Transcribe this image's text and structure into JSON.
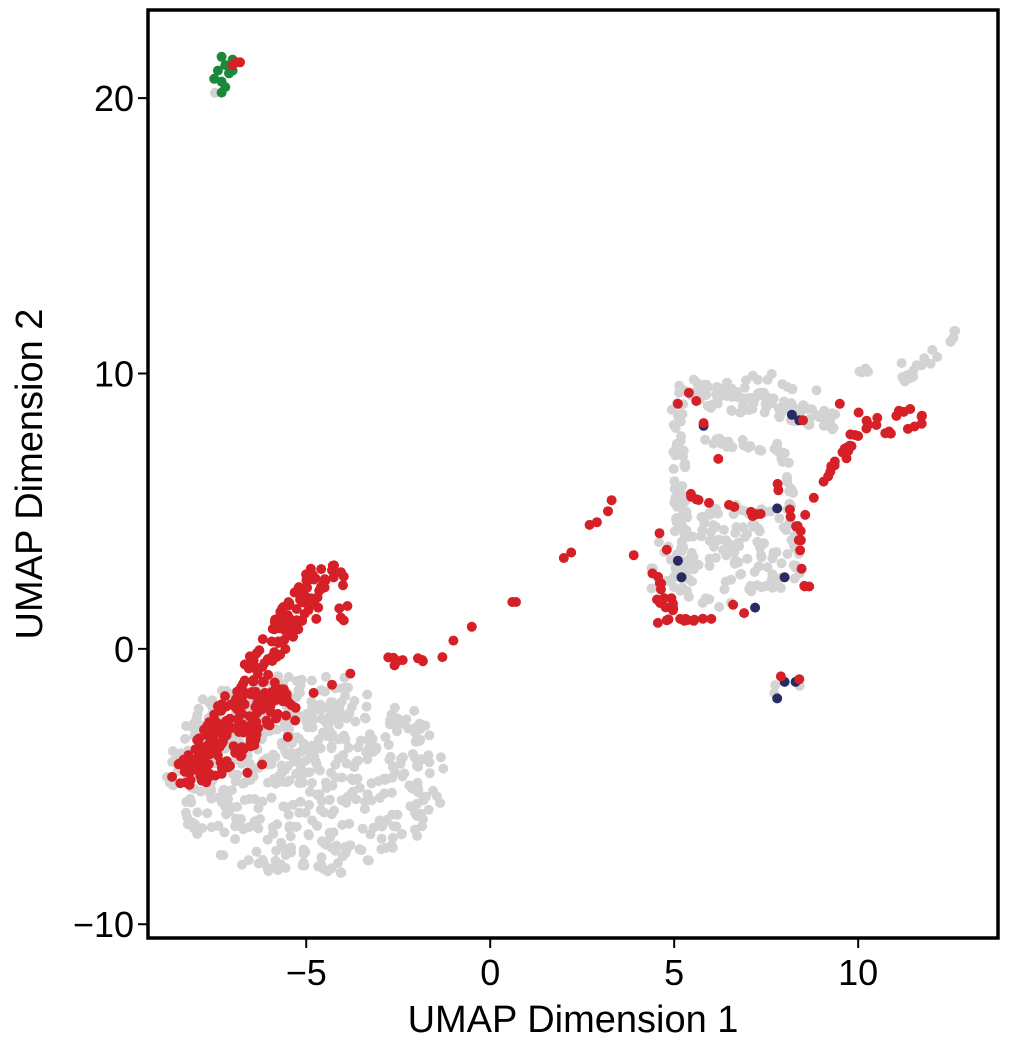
{
  "chart_data": {
    "type": "scatter",
    "title": "",
    "xlabel": "UMAP Dimension 1",
    "ylabel": "UMAP Dimension 2",
    "xlim": [
      -9.3,
      13.8
    ],
    "ylim": [
      -10.5,
      23.2
    ],
    "x_ticks": [
      -5,
      0,
      5,
      10
    ],
    "y_ticks": [
      -10,
      0,
      10,
      20
    ],
    "x_tick_labels": [
      "−5",
      "0",
      "5",
      "10"
    ],
    "y_tick_labels": [
      "−10",
      "0",
      "10",
      "20"
    ],
    "grid": false,
    "legend": "none",
    "colors": {
      "background_cells": "#d3d3d3",
      "red_cells": "#d62027",
      "navy_cells": "#262b63",
      "green_cells": "#1a8a3a"
    },
    "regions": [
      {
        "color": "#d3d3d3",
        "shape": "ellipse",
        "center": [
          -5.0,
          -4.6
        ],
        "radius": [
          3.8,
          3.7
        ],
        "density": 0.6
      },
      {
        "color": "#d3d3d3",
        "shape": "ellipse",
        "center": [
          -6.0,
          -2.9
        ],
        "radius": [
          2.2,
          2.0
        ],
        "density": 0.4
      },
      {
        "color": "#d3d3d3",
        "shape": "ellipse",
        "center": [
          6.5,
          3.4
        ],
        "radius": [
          2.1,
          1.9
        ],
        "density": 0.6
      },
      {
        "color": "#d3d3d3",
        "shape": "ellipse",
        "center": [
          7.2,
          9.3
        ],
        "radius": [
          1.8,
          0.8
        ],
        "density": 0.5
      },
      {
        "color": "#d3d3d3",
        "shape": "band",
        "from": [
          5.0,
          9.6
        ],
        "to": [
          9.5,
          8.2
        ],
        "width": 0.5
      },
      {
        "color": "#d3d3d3",
        "shape": "band",
        "from": [
          5.1,
          9.0
        ],
        "to": [
          5.2,
          2.5
        ],
        "width": 0.35
      },
      {
        "color": "#d3d3d3",
        "shape": "band",
        "from": [
          5.8,
          7.6
        ],
        "to": [
          8.2,
          7.2
        ],
        "width": 0.3
      },
      {
        "color": "#d3d3d3",
        "shape": "band",
        "from": [
          8.0,
          7.0
        ],
        "to": [
          8.2,
          4.5
        ],
        "width": 0.25
      },
      {
        "color": "#d3d3d3",
        "shape": "band",
        "from": [
          11.2,
          9.7
        ],
        "to": [
          12.7,
          11.5
        ],
        "width": 0.3
      },
      {
        "color": "#d3d3d3",
        "shape": "band",
        "from": [
          10.0,
          10.1
        ],
        "to": [
          11.2,
          10.3
        ],
        "width": 0.15
      },
      {
        "color": "#d3d3d3",
        "shape": "ellipse",
        "center": [
          4.7,
          2.6
        ],
        "radius": [
          0.8,
          0.6
        ],
        "density": 0.3
      },
      {
        "color": "#d3d3d3",
        "shape": "ellipse",
        "center": [
          8.1,
          -1.5
        ],
        "radius": [
          0.5,
          0.3
        ],
        "density": 0.3
      },
      {
        "color": "#d3d3d3",
        "shape": "ellipse",
        "center": [
          8.4,
          0.3
        ],
        "radius": [
          0.12,
          0.12
        ],
        "density": 0.2
      },
      {
        "color": "#d3d3d3",
        "shape": "ellipse",
        "center": [
          -7.3,
          20.4
        ],
        "radius": [
          0.25,
          0.5
        ],
        "density": 0.2
      },
      {
        "color": "#d62027",
        "shape": "band",
        "from": [
          -8.4,
          -4.9
        ],
        "to": [
          -4.6,
          2.8
        ],
        "width": 0.7
      },
      {
        "color": "#d62027",
        "shape": "band",
        "from": [
          -8.0,
          -4.6
        ],
        "to": [
          -5.5,
          -1.6
        ],
        "width": 0.9
      },
      {
        "color": "#d62027",
        "shape": "ellipse",
        "center": [
          -4.5,
          1.8
        ],
        "radius": [
          0.7,
          1.4
        ],
        "density": 0.4
      },
      {
        "color": "#d62027",
        "shape": "band",
        "from": [
          -3.1,
          -0.3
        ],
        "to": [
          -1.8,
          -0.4
        ],
        "width": 0.15
      },
      {
        "color": "#d62027",
        "shape": "ellipse",
        "center": [
          10.8,
          8.3
        ],
        "radius": [
          1.0,
          0.55
        ],
        "density": 0.5
      },
      {
        "color": "#d62027",
        "shape": "band",
        "from": [
          9.4,
          6.6
        ],
        "to": [
          10.2,
          8.3
        ],
        "width": 0.3
      },
      {
        "color": "#d62027",
        "shape": "band",
        "from": [
          8.3,
          4.4
        ],
        "to": [
          9.4,
          6.8
        ],
        "width": 0.12
      },
      {
        "color": "#d62027",
        "shape": "ellipse",
        "center": [
          4.8,
          1.4
        ],
        "radius": [
          0.7,
          0.5
        ],
        "density": 0.4
      },
      {
        "color": "#d62027",
        "shape": "band",
        "from": [
          4.4,
          1.1
        ],
        "to": [
          6.8,
          1.0
        ],
        "width": 0.12
      },
      {
        "color": "#d62027",
        "shape": "band",
        "from": [
          5.4,
          5.6
        ],
        "to": [
          7.4,
          4.8
        ],
        "width": 0.15
      },
      {
        "color": "#d62027",
        "shape": "band",
        "from": [
          8.4,
          4.0
        ],
        "to": [
          8.6,
          2.2
        ],
        "width": 0.15
      },
      {
        "color": "#d62027",
        "shape": "band",
        "from": [
          4.2,
          3.5
        ],
        "to": [
          4.8,
          1.8
        ],
        "width": 0.12
      },
      {
        "color": "#d62027",
        "shape": "band",
        "from": [
          7.8,
          6.0
        ],
        "to": [
          8.4,
          4.2
        ],
        "width": 0.12
      }
    ],
    "points": [
      {
        "x": -7.3,
        "y": 21.5,
        "color": "#1a8a3a"
      },
      {
        "x": -7.2,
        "y": 21.2,
        "color": "#1a8a3a"
      },
      {
        "x": -7.4,
        "y": 21.0,
        "color": "#1a8a3a"
      },
      {
        "x": -7.1,
        "y": 20.9,
        "color": "#1a8a3a"
      },
      {
        "x": -7.5,
        "y": 20.7,
        "color": "#1a8a3a"
      },
      {
        "x": -7.3,
        "y": 20.6,
        "color": "#1a8a3a"
      },
      {
        "x": -7.0,
        "y": 21.0,
        "color": "#1a8a3a"
      },
      {
        "x": -7.2,
        "y": 20.4,
        "color": "#1a8a3a"
      },
      {
        "x": -7.3,
        "y": 20.2,
        "color": "#1a8a3a"
      },
      {
        "x": -7.0,
        "y": 21.4,
        "color": "#1a8a3a"
      },
      {
        "x": -6.9,
        "y": 21.3,
        "color": "#d62027"
      },
      {
        "x": -7.0,
        "y": 21.2,
        "color": "#d62027"
      },
      {
        "x": -6.8,
        "y": 21.3,
        "color": "#d62027"
      },
      {
        "x": 5.1,
        "y": 3.2,
        "color": "#262b63"
      },
      {
        "x": 7.8,
        "y": 5.1,
        "color": "#262b63"
      },
      {
        "x": 8.0,
        "y": 2.6,
        "color": "#262b63"
      },
      {
        "x": 7.2,
        "y": 1.5,
        "color": "#262b63"
      },
      {
        "x": 8.4,
        "y": 8.3,
        "color": "#262b63"
      },
      {
        "x": 8.2,
        "y": 8.5,
        "color": "#262b63"
      },
      {
        "x": 8.0,
        "y": -1.2,
        "color": "#262b63"
      },
      {
        "x": 8.3,
        "y": -1.2,
        "color": "#262b63"
      },
      {
        "x": 7.8,
        "y": -1.8,
        "color": "#262b63"
      },
      {
        "x": 5.8,
        "y": 8.1,
        "color": "#262b63"
      },
      {
        "x": 7.9,
        "y": -1.0,
        "color": "#d62027"
      },
      {
        "x": 8.4,
        "y": -1.1,
        "color": "#d62027"
      },
      {
        "x": 5.2,
        "y": 2.6,
        "color": "#262b63"
      },
      {
        "x": -1.0,
        "y": 0.3,
        "color": "#d62027"
      },
      {
        "x": -0.5,
        "y": 0.8,
        "color": "#d62027"
      },
      {
        "x": 0.6,
        "y": 1.7,
        "color": "#d62027"
      },
      {
        "x": 0.7,
        "y": 1.7,
        "color": "#d62027"
      },
      {
        "x": 2.0,
        "y": 3.3,
        "color": "#d62027"
      },
      {
        "x": 2.2,
        "y": 3.5,
        "color": "#d62027"
      },
      {
        "x": 2.7,
        "y": 4.5,
        "color": "#d62027"
      },
      {
        "x": 2.9,
        "y": 4.6,
        "color": "#d62027"
      },
      {
        "x": 3.3,
        "y": 5.4,
        "color": "#d62027"
      },
      {
        "x": 3.2,
        "y": 5.0,
        "color": "#d62027"
      },
      {
        "x": 3.9,
        "y": 3.4,
        "color": "#d62027"
      },
      {
        "x": -2.6,
        "y": -0.6,
        "color": "#d62027"
      },
      {
        "x": -1.3,
        "y": -0.3,
        "color": "#d62027"
      },
      {
        "x": -6.2,
        "y": -4.2,
        "color": "#d62027"
      },
      {
        "x": -6.6,
        "y": -4.5,
        "color": "#d62027"
      },
      {
        "x": -5.5,
        "y": -3.2,
        "color": "#d62027"
      },
      {
        "x": -5.3,
        "y": -2.6,
        "color": "#d62027"
      },
      {
        "x": -4.8,
        "y": -1.6,
        "color": "#d62027"
      },
      {
        "x": -4.3,
        "y": -1.3,
        "color": "#d62027"
      },
      {
        "x": -3.8,
        "y": -0.9,
        "color": "#d62027"
      },
      {
        "x": 5.1,
        "y": 8.9,
        "color": "#d62027"
      },
      {
        "x": 5.4,
        "y": 9.3,
        "color": "#d62027"
      },
      {
        "x": 5.6,
        "y": 9.0,
        "color": "#d62027"
      },
      {
        "x": 5.8,
        "y": 8.2,
        "color": "#d62027"
      },
      {
        "x": 6.2,
        "y": 6.9,
        "color": "#d62027"
      },
      {
        "x": 4.6,
        "y": 4.2,
        "color": "#d62027"
      },
      {
        "x": 4.8,
        "y": 3.6,
        "color": "#d62027"
      },
      {
        "x": 6.6,
        "y": 1.6,
        "color": "#d62027"
      },
      {
        "x": 6.9,
        "y": 1.3,
        "color": "#d62027"
      },
      {
        "x": 9.5,
        "y": 8.9,
        "color": "#d62027"
      },
      {
        "x": 8.5,
        "y": 8.3,
        "color": "#d62027"
      }
    ]
  }
}
